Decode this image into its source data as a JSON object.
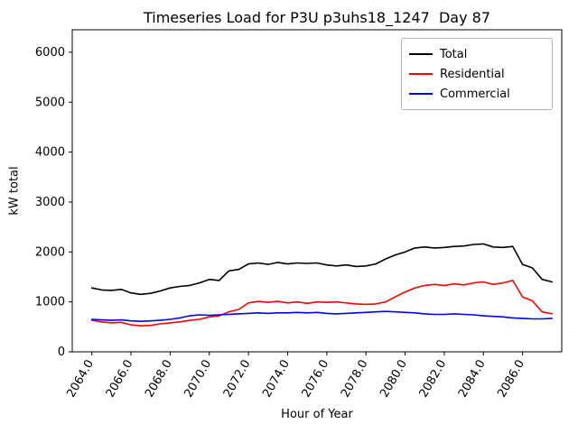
{
  "chart": {
    "title": "Timeseries Load for P3U p3uhs18_1247  Day 87",
    "xlabel": "Hour of Year",
    "ylabel": "kW total"
  },
  "chart_data": {
    "type": "line",
    "title": "Timeseries Load for P3U p3uhs18_1247  Day 87",
    "xlabel": "Hour of Year",
    "ylabel": "kW total",
    "grid": false,
    "legend_position": "upper right",
    "xlim": [
      2063.0,
      2088.0
    ],
    "ylim": [
      0,
      6450
    ],
    "x_ticks": [
      2064.0,
      2066.0,
      2068.0,
      2070.0,
      2072.0,
      2074.0,
      2076.0,
      2078.0,
      2080.0,
      2082.0,
      2084.0,
      2086.0
    ],
    "x_tick_labels": [
      "2064.0",
      "2066.0",
      "2068.0",
      "2070.0",
      "2072.0",
      "2074.0",
      "2076.0",
      "2078.0",
      "2080.0",
      "2082.0",
      "2084.0",
      "2086.0"
    ],
    "y_ticks": [
      0,
      1000,
      2000,
      3000,
      4000,
      5000,
      6000
    ],
    "y_tick_labels": [
      "0",
      "1000",
      "2000",
      "3000",
      "4000",
      "5000",
      "6000"
    ],
    "x": [
      2064.0,
      2064.5,
      2065.0,
      2065.5,
      2066.0,
      2066.5,
      2067.0,
      2067.5,
      2068.0,
      2068.5,
      2069.0,
      2069.5,
      2070.0,
      2070.5,
      2071.0,
      2071.5,
      2072.0,
      2072.5,
      2073.0,
      2073.5,
      2074.0,
      2074.5,
      2075.0,
      2075.5,
      2076.0,
      2076.5,
      2077.0,
      2077.5,
      2078.0,
      2078.5,
      2079.0,
      2079.5,
      2080.0,
      2080.5,
      2081.0,
      2081.5,
      2082.0,
      2082.5,
      2083.0,
      2083.5,
      2084.0,
      2084.5,
      2085.0,
      2085.5,
      2086.0,
      2086.5,
      2087.0,
      2087.5
    ],
    "series": [
      {
        "name": "Total",
        "color": "#000000",
        "values": [
          1280,
          1240,
          1230,
          1250,
          1180,
          1150,
          1170,
          1220,
          1280,
          1310,
          1330,
          1380,
          1450,
          1430,
          1620,
          1650,
          1760,
          1780,
          1750,
          1790,
          1760,
          1780,
          1770,
          1780,
          1740,
          1720,
          1740,
          1710,
          1720,
          1760,
          1860,
          1940,
          2000,
          2080,
          2100,
          2080,
          2090,
          2110,
          2120,
          2150,
          2160,
          2100,
          2090,
          2110,
          1750,
          1680,
          1450,
          1400
        ]
      },
      {
        "name": "Residential",
        "color": "#ff0000",
        "values": [
          630,
          600,
          580,
          590,
          540,
          520,
          530,
          560,
          580,
          600,
          630,
          650,
          700,
          720,
          800,
          850,
          980,
          1010,
          990,
          1010,
          980,
          1000,
          970,
          1000,
          990,
          1000,
          980,
          960,
          950,
          960,
          1000,
          1100,
          1200,
          1280,
          1330,
          1350,
          1330,
          1360,
          1340,
          1380,
          1400,
          1350,
          1380,
          1430,
          1100,
          1020,
          800,
          760
        ]
      },
      {
        "name": "Commercial",
        "color": "#0000ff",
        "values": [
          650,
          640,
          630,
          640,
          620,
          610,
          620,
          630,
          650,
          680,
          720,
          740,
          730,
          740,
          750,
          760,
          770,
          780,
          770,
          780,
          780,
          790,
          780,
          790,
          770,
          760,
          770,
          780,
          790,
          800,
          810,
          800,
          790,
          780,
          760,
          750,
          750,
          760,
          750,
          740,
          720,
          710,
          700,
          680,
          670,
          660,
          660,
          670
        ]
      }
    ]
  }
}
